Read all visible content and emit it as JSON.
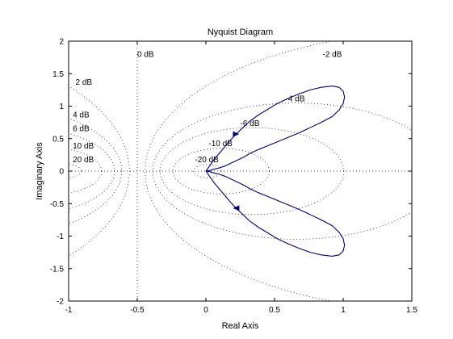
{
  "chart_data": {
    "type": "line",
    "title": "Nyquist Diagram",
    "xlabel": "Real Axis",
    "ylabel": "Imaginary Axis",
    "xlim": [
      -1,
      1.5
    ],
    "ylim": [
      -2,
      2
    ],
    "xticks": [
      -1,
      -0.5,
      0,
      0.5,
      1,
      1.5
    ],
    "xtick_labels": [
      "-1",
      "-0.5",
      "0",
      "0.5",
      "1",
      "1.5"
    ],
    "yticks": [
      -2,
      -1.5,
      -1,
      -0.5,
      0,
      0.5,
      1,
      1.5,
      2
    ],
    "ytick_labels": [
      "-2",
      "-1.5",
      "-1",
      "-0.5",
      "0",
      "0.5",
      "1",
      "1.5",
      "2"
    ],
    "grid": "M-circles (dotted)",
    "grid_labels": [
      {
        "text": "0 dB",
        "x": -0.5,
        "y": 1.8
      },
      {
        "text": "-2 dB",
        "x": 0.85,
        "y": 1.8
      },
      {
        "text": "2 dB",
        "x": -0.95,
        "y": 1.37
      },
      {
        "text": "-4 dB",
        "x": 0.58,
        "y": 1.12
      },
      {
        "text": "4 dB",
        "x": -0.97,
        "y": 0.87
      },
      {
        "text": "-6 dB",
        "x": 0.25,
        "y": 0.74
      },
      {
        "text": "6 dB",
        "x": -0.97,
        "y": 0.66
      },
      {
        "text": "-10 dB",
        "x": 0.02,
        "y": 0.43
      },
      {
        "text": "10 dB",
        "x": -0.97,
        "y": 0.39
      },
      {
        "text": "-20 dB",
        "x": -0.08,
        "y": 0.18
      },
      {
        "text": "20 dB",
        "x": -0.97,
        "y": 0.18
      }
    ],
    "m_circles_db": [
      20,
      10,
      6,
      4,
      2,
      0,
      -2,
      -4,
      -6,
      -10,
      -20
    ],
    "series": [
      {
        "color": "#00007f",
        "x": [
          0.0,
          0.03,
          0.06,
          0.1,
          0.14,
          0.18,
          0.22,
          0.27,
          0.32,
          0.38,
          0.45,
          0.52,
          0.6,
          0.68,
          0.76,
          0.84,
          0.92,
          0.97,
          1.0,
          1.01,
          1.0,
          0.97,
          0.92,
          0.84,
          0.76,
          0.68,
          0.6,
          0.52,
          0.45,
          0.38,
          0.32,
          0.27,
          0.22,
          0.18,
          0.14,
          0.1,
          0.06,
          0.03,
          0.0
        ],
        "y": [
          0.0,
          -0.09,
          -0.18,
          -0.28,
          -0.38,
          -0.48,
          -0.57,
          -0.67,
          -0.77,
          -0.86,
          -0.95,
          -1.04,
          -1.12,
          -1.19,
          -1.25,
          -1.29,
          -1.31,
          -1.29,
          -1.23,
          -1.14,
          -1.04,
          -0.94,
          -0.84,
          -0.75,
          -0.67,
          -0.59,
          -0.52,
          -0.45,
          -0.39,
          -0.33,
          -0.27,
          -0.21,
          -0.16,
          -0.12,
          -0.08,
          -0.05,
          -0.03,
          -0.01,
          0.0
        ]
      }
    ]
  }
}
